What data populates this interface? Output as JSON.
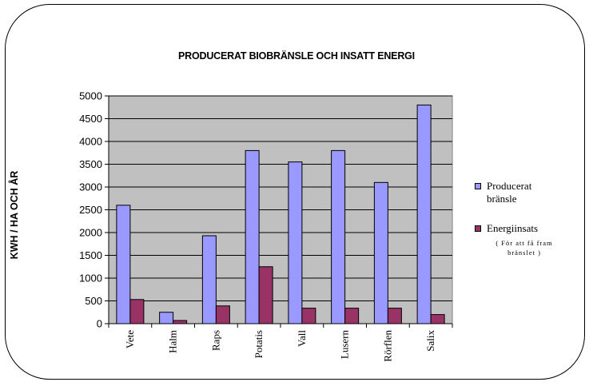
{
  "chart_data": {
    "type": "bar",
    "title": "PRODUCERAT BIOBRÄNSLE OCH INSATT ENERGI",
    "ylabel": "KWH / HA OCH ÅR",
    "xlabel": "",
    "categories": [
      "Vete",
      "Halm",
      "Raps",
      "Potatis",
      "Vall",
      "Lusern",
      "Rörflen",
      "Salix"
    ],
    "series": [
      {
        "name": "Producerat bränsle",
        "color": "#9999ff",
        "values": [
          2600,
          250,
          1930,
          3800,
          3550,
          3800,
          3100,
          4800
        ]
      },
      {
        "name": "Energiinsats",
        "color": "#993366",
        "values": [
          530,
          70,
          390,
          1250,
          340,
          340,
          340,
          200
        ]
      }
    ],
    "legend_note": "( För att få fram bränslet )",
    "ylim": [
      0,
      5000
    ],
    "yticks": [
      "0",
      "500",
      "1000",
      "1500",
      "2000",
      "2500",
      "3000",
      "3500",
      "4000",
      "4500",
      "5000"
    ],
    "grid": true,
    "plot_background": "#c0c0c0",
    "legend_position": "right"
  }
}
